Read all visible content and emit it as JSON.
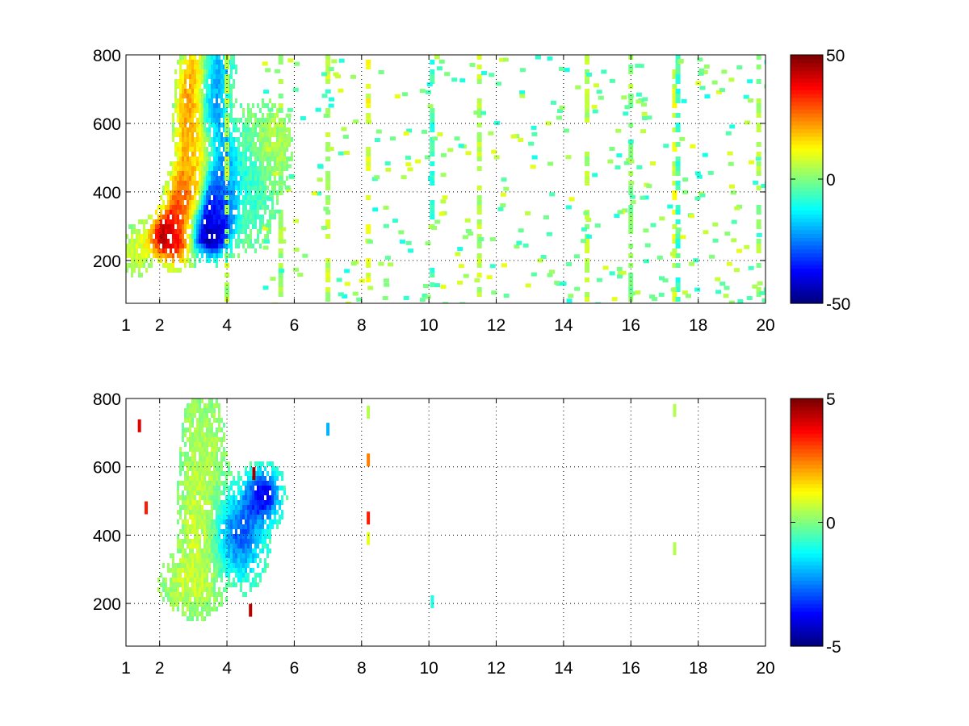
{
  "chart_data": [
    {
      "type": "heatmap",
      "title": "",
      "xlabel": "",
      "ylabel": "",
      "xlim": [
        1,
        20
      ],
      "ylim": [
        75,
        800
      ],
      "x_ticks": [
        1,
        2,
        4,
        6,
        8,
        10,
        12,
        14,
        16,
        18,
        20
      ],
      "y_ticks": [
        200,
        400,
        600,
        800
      ],
      "grid": true,
      "colormap": "jet",
      "colorbar": {
        "range": [
          -50,
          50
        ],
        "ticks": [
          50,
          0,
          -50
        ],
        "placement": "right"
      },
      "features": [
        {
          "x": 1.3,
          "y": 230,
          "value": 8,
          "sx": 0.25,
          "sy": 40
        },
        {
          "x": 2.2,
          "y": 270,
          "value": 45,
          "sx": 0.35,
          "sy": 45
        },
        {
          "x": 2.6,
          "y": 330,
          "value": 32,
          "sx": 0.3,
          "sy": 80
        },
        {
          "x": 2.9,
          "y": 430,
          "value": 22,
          "sx": 0.25,
          "sy": 90
        },
        {
          "x": 3.2,
          "y": 520,
          "value": 12,
          "sx": 0.3,
          "sy": 60
        },
        {
          "x": 2.9,
          "y": 620,
          "value": 25,
          "sx": 0.25,
          "sy": 70
        },
        {
          "x": 3.0,
          "y": 740,
          "value": 20,
          "sx": 0.25,
          "sy": 60
        },
        {
          "x": 3.4,
          "y": 285,
          "value": -48,
          "sx": 0.35,
          "sy": 45
        },
        {
          "x": 3.7,
          "y": 350,
          "value": -40,
          "sx": 0.3,
          "sy": 70
        },
        {
          "x": 3.9,
          "y": 440,
          "value": -28,
          "sx": 0.25,
          "sy": 90
        },
        {
          "x": 3.6,
          "y": 650,
          "value": -22,
          "sx": 0.3,
          "sy": 80
        },
        {
          "x": 3.8,
          "y": 760,
          "value": -18,
          "sx": 0.25,
          "sy": 40
        },
        {
          "x": 4.6,
          "y": 430,
          "value": -8,
          "sx": 0.5,
          "sy": 110
        },
        {
          "x": 5.3,
          "y": 540,
          "value": 6,
          "sx": 0.35,
          "sy": 60
        }
      ],
      "streaks": [
        {
          "x": 4.0,
          "value": 4
        },
        {
          "x": 5.6,
          "value": 3
        },
        {
          "x": 7.0,
          "value": 6
        },
        {
          "x": 8.2,
          "value": 10
        },
        {
          "x": 10.1,
          "value": -6
        },
        {
          "x": 11.5,
          "value": 5
        },
        {
          "x": 14.7,
          "value": 4
        },
        {
          "x": 16.0,
          "value": 2
        },
        {
          "x": 17.3,
          "value": 9
        },
        {
          "x": 17.4,
          "value": -7
        },
        {
          "x": 19.8,
          "value": 3
        }
      ],
      "scatter_density": 0.22
    },
    {
      "type": "heatmap",
      "title": "",
      "xlabel": "",
      "ylabel": "",
      "xlim": [
        1,
        20
      ],
      "ylim": [
        75,
        800
      ],
      "x_ticks": [
        1,
        2,
        4,
        6,
        8,
        10,
        12,
        14,
        16,
        18,
        20
      ],
      "y_ticks": [
        200,
        400,
        600,
        800
      ],
      "grid": true,
      "colormap": "jet",
      "colorbar": {
        "range": [
          -5,
          5
        ],
        "ticks": [
          5,
          0,
          -5
        ],
        "placement": "right"
      },
      "features": [
        {
          "x": 2.9,
          "y": 260,
          "value": 0.6,
          "sx": 0.5,
          "sy": 50
        },
        {
          "x": 3.2,
          "y": 400,
          "value": 0.8,
          "sx": 0.35,
          "sy": 110
        },
        {
          "x": 3.3,
          "y": 620,
          "value": 0.5,
          "sx": 0.35,
          "sy": 120
        },
        {
          "x": 4.4,
          "y": 400,
          "value": -2.8,
          "sx": 0.5,
          "sy": 90
        },
        {
          "x": 5.1,
          "y": 520,
          "value": -3.8,
          "sx": 0.35,
          "sy": 50
        }
      ],
      "isolated": [
        {
          "x": 8.2,
          "y": 760,
          "value": 0.5
        },
        {
          "x": 8.2,
          "y": 620,
          "value": 2.5
        },
        {
          "x": 8.2,
          "y": 450,
          "value": 3.5
        },
        {
          "x": 8.2,
          "y": 390,
          "value": 1.0
        },
        {
          "x": 7.0,
          "y": 710,
          "value": -2.0
        },
        {
          "x": 4.7,
          "y": 180,
          "value": 4.5
        },
        {
          "x": 4.8,
          "y": 580,
          "value": 4.8
        },
        {
          "x": 10.1,
          "y": 205,
          "value": -1.0
        },
        {
          "x": 17.3,
          "y": 765,
          "value": 0.5
        },
        {
          "x": 17.3,
          "y": 360,
          "value": 0.5
        },
        {
          "x": 1.4,
          "y": 720,
          "value": 4.0
        },
        {
          "x": 1.6,
          "y": 480,
          "value": 3.5
        }
      ]
    }
  ]
}
